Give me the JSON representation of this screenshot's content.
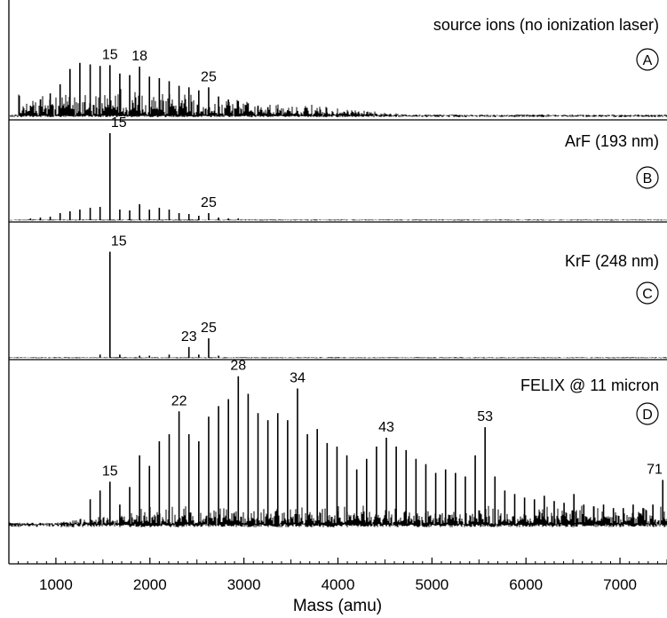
{
  "figure": {
    "xlabel": "Mass (amu)",
    "x_ticks": [
      1000,
      2000,
      3000,
      4000,
      5000,
      6000,
      7000
    ],
    "xlim": [
      500,
      7500
    ],
    "grid": false,
    "colors": {
      "axis": "#000000",
      "trace": "#000000"
    }
  },
  "chart_data": [
    {
      "type": "line",
      "panel": "A",
      "annotation": "source ions (no ionization laser)",
      "peak_labels": [
        {
          "label": "15",
          "mass": 1575
        },
        {
          "label": "18",
          "mass": 1890
        },
        {
          "label": "25",
          "mass": 2625
        }
      ],
      "peaks": [
        [
          730,
          0.14
        ],
        [
          835,
          0.22
        ],
        [
          940,
          0.3
        ],
        [
          1045,
          0.42
        ],
        [
          1150,
          0.62
        ],
        [
          1255,
          0.7
        ],
        [
          1365,
          0.68
        ],
        [
          1470,
          0.66
        ],
        [
          1575,
          0.67
        ],
        [
          1680,
          0.56
        ],
        [
          1785,
          0.54
        ],
        [
          1890,
          0.65
        ],
        [
          1995,
          0.52
        ],
        [
          2100,
          0.5
        ],
        [
          2205,
          0.46
        ],
        [
          2310,
          0.4
        ],
        [
          2415,
          0.38
        ],
        [
          2520,
          0.34
        ],
        [
          2625,
          0.38
        ],
        [
          2730,
          0.26
        ],
        [
          2835,
          0.22
        ],
        [
          2940,
          0.2
        ],
        [
          3045,
          0.17
        ],
        [
          3150,
          0.14
        ],
        [
          3255,
          0.12
        ],
        [
          3360,
          0.1
        ],
        [
          3465,
          0.08
        ],
        [
          3570,
          0.07
        ],
        [
          3675,
          0.06
        ],
        [
          3780,
          0.05
        ],
        [
          3885,
          0.05
        ],
        [
          3990,
          0.04
        ],
        [
          4095,
          0.04
        ],
        [
          4200,
          0.03
        ],
        [
          4305,
          0.03
        ],
        [
          4410,
          0.03
        ],
        [
          4515,
          0.02
        ],
        [
          4620,
          0.02
        ],
        [
          4725,
          0.02
        ],
        [
          4830,
          0.02
        ]
      ]
    },
    {
      "type": "line",
      "panel": "B",
      "annotation": "ArF (193 nm)",
      "peak_labels": [
        {
          "label": "15",
          "mass": 1575
        },
        {
          "label": "25",
          "mass": 2625
        }
      ],
      "peaks": [
        [
          730,
          0.02
        ],
        [
          835,
          0.03
        ],
        [
          940,
          0.04
        ],
        [
          1045,
          0.08
        ],
        [
          1150,
          0.1
        ],
        [
          1255,
          0.12
        ],
        [
          1365,
          0.14
        ],
        [
          1470,
          0.15
        ],
        [
          1575,
          0.98
        ],
        [
          1680,
          0.12
        ],
        [
          1785,
          0.11
        ],
        [
          1890,
          0.18
        ],
        [
          1995,
          0.12
        ],
        [
          2100,
          0.14
        ],
        [
          2205,
          0.12
        ],
        [
          2310,
          0.08
        ],
        [
          2415,
          0.07
        ],
        [
          2520,
          0.05
        ],
        [
          2625,
          0.08
        ],
        [
          2730,
          0.03
        ],
        [
          2835,
          0.02
        ],
        [
          2940,
          0.02
        ]
      ]
    },
    {
      "type": "line",
      "panel": "C",
      "annotation": "KrF (248 nm)",
      "peak_labels": [
        {
          "label": "15",
          "mass": 1575
        },
        {
          "label": "23",
          "mass": 2415
        },
        {
          "label": "25",
          "mass": 2625
        }
      ],
      "peaks": [
        [
          1470,
          0.03
        ],
        [
          1575,
          0.98
        ],
        [
          1680,
          0.03
        ],
        [
          1890,
          0.02
        ],
        [
          1995,
          0.02
        ],
        [
          2205,
          0.03
        ],
        [
          2415,
          0.1
        ],
        [
          2520,
          0.03
        ],
        [
          2625,
          0.18
        ],
        [
          2730,
          0.02
        ]
      ]
    },
    {
      "type": "line",
      "panel": "D",
      "annotation": "FELIX @ 11 micron",
      "peak_labels": [
        {
          "label": "15",
          "mass": 1575
        },
        {
          "label": "22",
          "mass": 2310
        },
        {
          "label": "28",
          "mass": 2940
        },
        {
          "label": "34",
          "mass": 3570
        },
        {
          "label": "43",
          "mass": 4515
        },
        {
          "label": "53",
          "mass": 5565
        },
        {
          "label": "71",
          "mass": 7455
        }
      ],
      "peaks": [
        [
          1365,
          0.15
        ],
        [
          1470,
          0.2
        ],
        [
          1575,
          0.25
        ],
        [
          1680,
          0.12
        ],
        [
          1785,
          0.22
        ],
        [
          1890,
          0.4
        ],
        [
          1995,
          0.34
        ],
        [
          2100,
          0.48
        ],
        [
          2205,
          0.52
        ],
        [
          2310,
          0.65
        ],
        [
          2415,
          0.52
        ],
        [
          2520,
          0.48
        ],
        [
          2625,
          0.62
        ],
        [
          2730,
          0.68
        ],
        [
          2835,
          0.72
        ],
        [
          2940,
          0.85
        ],
        [
          3045,
          0.75
        ],
        [
          3150,
          0.64
        ],
        [
          3255,
          0.6
        ],
        [
          3360,
          0.64
        ],
        [
          3465,
          0.6
        ],
        [
          3570,
          0.78
        ],
        [
          3675,
          0.52
        ],
        [
          3780,
          0.55
        ],
        [
          3885,
          0.47
        ],
        [
          3990,
          0.45
        ],
        [
          4095,
          0.4
        ],
        [
          4200,
          0.32
        ],
        [
          4305,
          0.38
        ],
        [
          4410,
          0.45
        ],
        [
          4515,
          0.5
        ],
        [
          4620,
          0.45
        ],
        [
          4725,
          0.43
        ],
        [
          4830,
          0.38
        ],
        [
          4935,
          0.35
        ],
        [
          5040,
          0.3
        ],
        [
          5145,
          0.32
        ],
        [
          5250,
          0.3
        ],
        [
          5355,
          0.28
        ],
        [
          5460,
          0.4
        ],
        [
          5565,
          0.56
        ],
        [
          5670,
          0.28
        ],
        [
          5775,
          0.2
        ],
        [
          5880,
          0.18
        ],
        [
          5985,
          0.16
        ],
        [
          6090,
          0.15
        ],
        [
          6195,
          0.17
        ],
        [
          6300,
          0.14
        ],
        [
          6405,
          0.13
        ],
        [
          6510,
          0.18
        ],
        [
          6615,
          0.12
        ],
        [
          6720,
          0.11
        ],
        [
          6825,
          0.12
        ],
        [
          6930,
          0.1
        ],
        [
          7035,
          0.1
        ],
        [
          7140,
          0.12
        ],
        [
          7245,
          0.1
        ],
        [
          7350,
          0.12
        ],
        [
          7455,
          0.26
        ]
      ]
    }
  ]
}
